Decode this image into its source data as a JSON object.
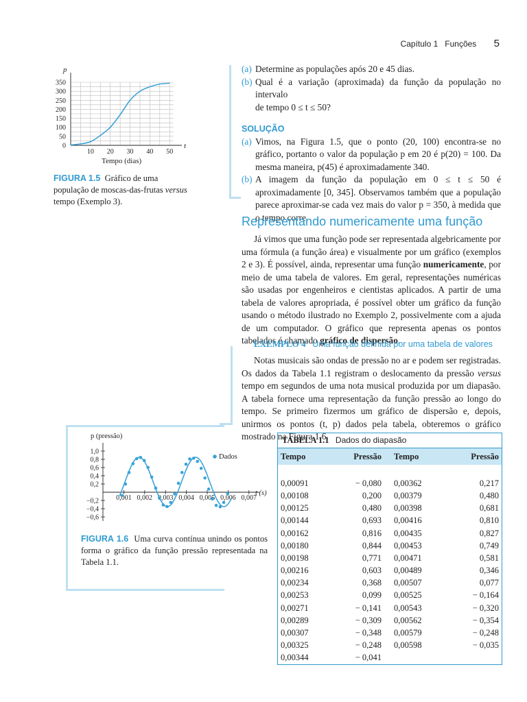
{
  "header": {
    "chapter": "Capítulo 1",
    "section": "Funções",
    "page": "5"
  },
  "fig15": {
    "p_label": "p",
    "t_label": "t",
    "xaxis_title": "Tempo (dias)",
    "caption_label": "FIGURA 1.5",
    "caption_a": "Gráfico de uma população de moscas-das-frutas ",
    "caption_versus": "versus",
    "caption_b": " tempo (Exemplo 3).",
    "yticks": [
      "350",
      "300",
      "250",
      "200",
      "150",
      "100",
      "50",
      "0"
    ],
    "xticks": [
      "10",
      "20",
      "30",
      "40",
      "50"
    ],
    "chart_data": {
      "type": "line",
      "x": [
        0,
        5,
        10,
        15,
        20,
        25,
        30,
        35,
        40,
        45,
        50
      ],
      "y": [
        2,
        8,
        20,
        55,
        100,
        170,
        250,
        300,
        325,
        340,
        345
      ],
      "xlabel": "Tempo (dias)",
      "ylabel": "p",
      "xlim": [
        0,
        52
      ],
      "ylim": [
        0,
        350
      ],
      "grid": true
    }
  },
  "exercise": {
    "a_label": "(a)",
    "a": "Determine as populações após 20 e 45 dias.",
    "b_label": "(b)",
    "b1": "Qual é a variação (aproximada) da função da população no intervalo",
    "b2": "de tempo 0 ≤ t ≤ 50?",
    "solution_title": "SOLUÇÃO",
    "sa_label": "(a)",
    "sa": "Vimos, na Figura 1.5, que o ponto (20, 100) encontra-se no gráfico, portanto o valor da população p em 20 é p(20) = 100. Da mesma maneira, p(45) é aproximadamente 340.",
    "sb_label": "(b)",
    "sb": "A imagem da função da população em 0 ≤ t ≤ 50 é aproximadamente [0, 345]. Observamos também que a população parece aproximar-se cada vez mais do valor p = 350, à medida que o tempo corre."
  },
  "section": {
    "title": "Representando numericamente uma função",
    "para_a": "Já vimos que uma função pode ser representada algebricamente por uma fórmula (a função área) e visualmente por um gráfico (exemplos 2 e 3). É possível, ainda, representar uma função ",
    "para_b1": "numericamente",
    "para_c": ", por meio de uma tabela de valores. Em geral, representações numéricas são usadas por engenheiros e cientistas aplicados. A partir de uma tabela de valores apropriada, é possível obter um gráfico da função usando o método ilustrado no Exemplo 2, possivelmente com a ajuda de um computador. O gráfico que representa apenas os pontos tabelados é chamado ",
    "para_b2": "gráfico de dispersão",
    "para_d": "."
  },
  "example4": {
    "label": "EXEMPLO 4",
    "title": "Uma função definida por uma tabela de valores",
    "text_a": "Notas musicais são ondas de pressão no ar e podem ser registradas. Os dados da Tabela 1.1 registram o deslocamento da pressão ",
    "text_versus": "versus",
    "text_b": " tempo em segundos de uma nota musical produzida por um diapasão. A tabela fornece uma representação da função pressão ao longo do tempo. Se primeiro fizermos um gráfico de dispersão e, depois, unirmos os pontos (t, p) dados pela tabela, obteremos o gráfico mostrado na Figura 1.6."
  },
  "fig16": {
    "p_label": "p (pressão)",
    "t_label": "t (s)",
    "legend": "Dados",
    "caption_label": "FIGURA 1.6",
    "caption": "Uma curva contínua unindo os pontos forma o gráfico da função pressão representada na Tabela 1.1.",
    "yticks": [
      "1,0",
      "0,8",
      "0,6",
      "0,4",
      "0,2",
      "−0,2",
      "−0,4",
      "−0,6"
    ],
    "xticks": [
      "0,001",
      "0,002",
      "0,003",
      "0,004",
      "0,005",
      "0,006",
      "0,007"
    ],
    "chart_data": {
      "type": "scatter",
      "series": [
        {
          "name": "Dados",
          "x": [
            0.00091,
            0.00108,
            0.00125,
            0.00144,
            0.00162,
            0.0018,
            0.00198,
            0.00216,
            0.00234,
            0.00253,
            0.00271,
            0.00289,
            0.00307,
            0.00325,
            0.00344,
            0.00362,
            0.00379,
            0.00398,
            0.00416,
            0.00435,
            0.00453,
            0.00471,
            0.00489,
            0.00507,
            0.00525,
            0.00543,
            0.00562,
            0.00579,
            0.00598
          ],
          "y": [
            -0.08,
            0.2,
            0.48,
            0.693,
            0.816,
            0.844,
            0.771,
            0.603,
            0.368,
            0.099,
            -0.141,
            -0.309,
            -0.348,
            -0.248,
            -0.041,
            0.217,
            0.48,
            0.681,
            0.81,
            0.827,
            0.749,
            0.581,
            0.346,
            0.077,
            -0.164,
            -0.32,
            -0.354,
            -0.248,
            -0.035
          ]
        }
      ],
      "xlabel": "t (s)",
      "ylabel": "p (pressão)",
      "xlim": [
        0,
        0.0075
      ],
      "ylim": [
        -0.6,
        1.0
      ],
      "legend": "top-right"
    }
  },
  "table11": {
    "label": "TABELA 1.1",
    "title": "Dados do diapasão",
    "headers": [
      "Tempo",
      "Pressão",
      "Tempo",
      "Pressão"
    ],
    "rows": [
      [
        "0,00091",
        "− 0,080",
        "0,00362",
        "0,217"
      ],
      [
        "0,00108",
        "0,200",
        "0,00379",
        "0,480"
      ],
      [
        "0,00125",
        "0,480",
        "0,00398",
        "0,681"
      ],
      [
        "0,00144",
        "0,693",
        "0,00416",
        "0,810"
      ],
      [
        "0,00162",
        "0,816",
        "0,00435",
        "0,827"
      ],
      [
        "0,00180",
        "0,844",
        "0,00453",
        "0,749"
      ],
      [
        "0,00198",
        "0,771",
        "0,00471",
        "0,581"
      ],
      [
        "0,00216",
        "0,603",
        "0,00489",
        "0,346"
      ],
      [
        "0,00234",
        "0,368",
        "0,00507",
        "0,077"
      ],
      [
        "0,00253",
        "0,099",
        "0,00525",
        "− 0,164"
      ],
      [
        "0,00271",
        "− 0,141",
        "0,00543",
        "− 0,320"
      ],
      [
        "0,00289",
        "− 0,309",
        "0,00562",
        "− 0,354"
      ],
      [
        "0,00307",
        "− 0,348",
        "0,00579",
        "− 0,248"
      ],
      [
        "0,00325",
        "− 0,248",
        "0,00598",
        "− 0,035"
      ],
      [
        "0,00344",
        "− 0,041",
        "",
        ""
      ]
    ]
  },
  "colors": {
    "accent": "#2e9ad0",
    "bracket": "#bde0f0",
    "table_header": "#c9e6f4",
    "curve": "#3aa3d8"
  }
}
